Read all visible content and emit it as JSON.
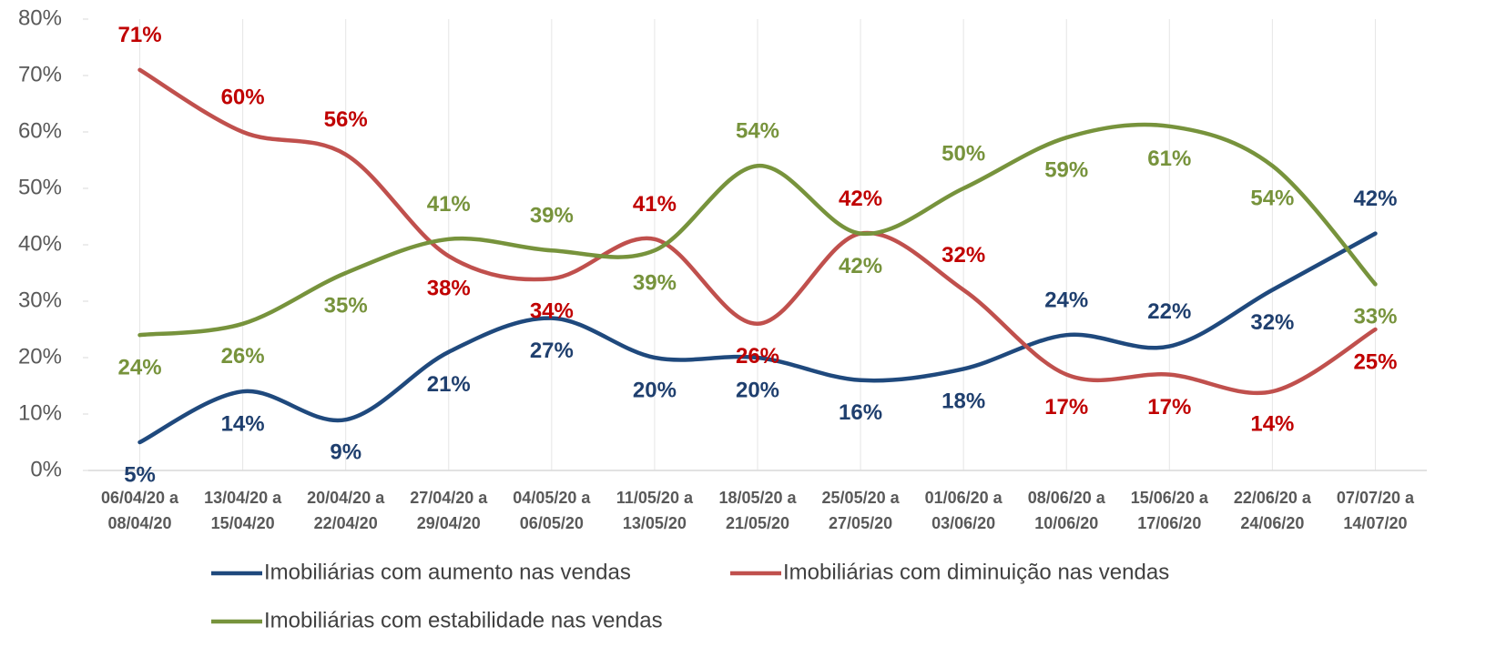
{
  "chart_data": {
    "type": "line",
    "categories": [
      [
        "06/04/20 a",
        "08/04/20"
      ],
      [
        "13/04/20 a",
        "15/04/20"
      ],
      [
        "20/04/20 a",
        "22/04/20"
      ],
      [
        "27/04/20 a",
        "29/04/20"
      ],
      [
        "04/05/20 a",
        "06/05/20"
      ],
      [
        "11/05/20 a",
        "13/05/20"
      ],
      [
        "18/05/20 a",
        "21/05/20"
      ],
      [
        "25/05/20 a",
        "27/05/20"
      ],
      [
        "01/06/20 a",
        "03/06/20"
      ],
      [
        "08/06/20 a",
        "10/06/20"
      ],
      [
        "15/06/20 a",
        "17/06/20"
      ],
      [
        "22/06/20 a",
        "24/06/20"
      ],
      [
        "07/07/20 a",
        "14/07/20"
      ]
    ],
    "ylim": [
      0,
      80
    ],
    "yticks": [
      {
        "value": 0,
        "label": "0%"
      },
      {
        "value": 10,
        "label": "10%"
      },
      {
        "value": 20,
        "label": "20%"
      },
      {
        "value": 30,
        "label": "30%"
      },
      {
        "value": 40,
        "label": "40%"
      },
      {
        "value": 50,
        "label": "50%"
      },
      {
        "value": 60,
        "label": "60%"
      },
      {
        "value": 70,
        "label": "70%"
      },
      {
        "value": 80,
        "label": "80%"
      }
    ],
    "series": [
      {
        "name": "Imobiliárias com aumento nas vendas",
        "color": "#1f497d",
        "label_color": "#1f3f6e",
        "values": [
          5,
          14,
          9,
          21,
          27,
          20,
          20,
          16,
          18,
          24,
          22,
          32,
          42
        ],
        "value_labels": [
          "5%",
          "14%",
          "9%",
          "21%",
          "27%",
          "20%",
          "20%",
          "16%",
          "18%",
          "24%",
          "22%",
          "32%",
          "42%"
        ]
      },
      {
        "name": "Imobiliárias com diminuição nas vendas",
        "color": "#c0504d",
        "label_color": "#c00000",
        "values": [
          71,
          60,
          56,
          38,
          34,
          41,
          26,
          42,
          32,
          17,
          17,
          14,
          25
        ],
        "value_labels": [
          "71%",
          "60%",
          "56%",
          "38%",
          "34%",
          "41%",
          "26%",
          "42%",
          "32%",
          "17%",
          "17%",
          "14%",
          "25%"
        ]
      },
      {
        "name": "Imobiliárias com estabilidade nas vendas",
        "color": "#77933c",
        "label_color": "#77933c",
        "values": [
          24,
          26,
          35,
          41,
          39,
          39,
          54,
          42,
          50,
          59,
          61,
          54,
          33
        ],
        "value_labels": [
          "24%",
          "26%",
          "35%",
          "41%",
          "39%",
          "39%",
          "54%",
          "42%",
          "50%",
          "59%",
          "61%",
          "54%",
          "33%"
        ]
      }
    ]
  }
}
